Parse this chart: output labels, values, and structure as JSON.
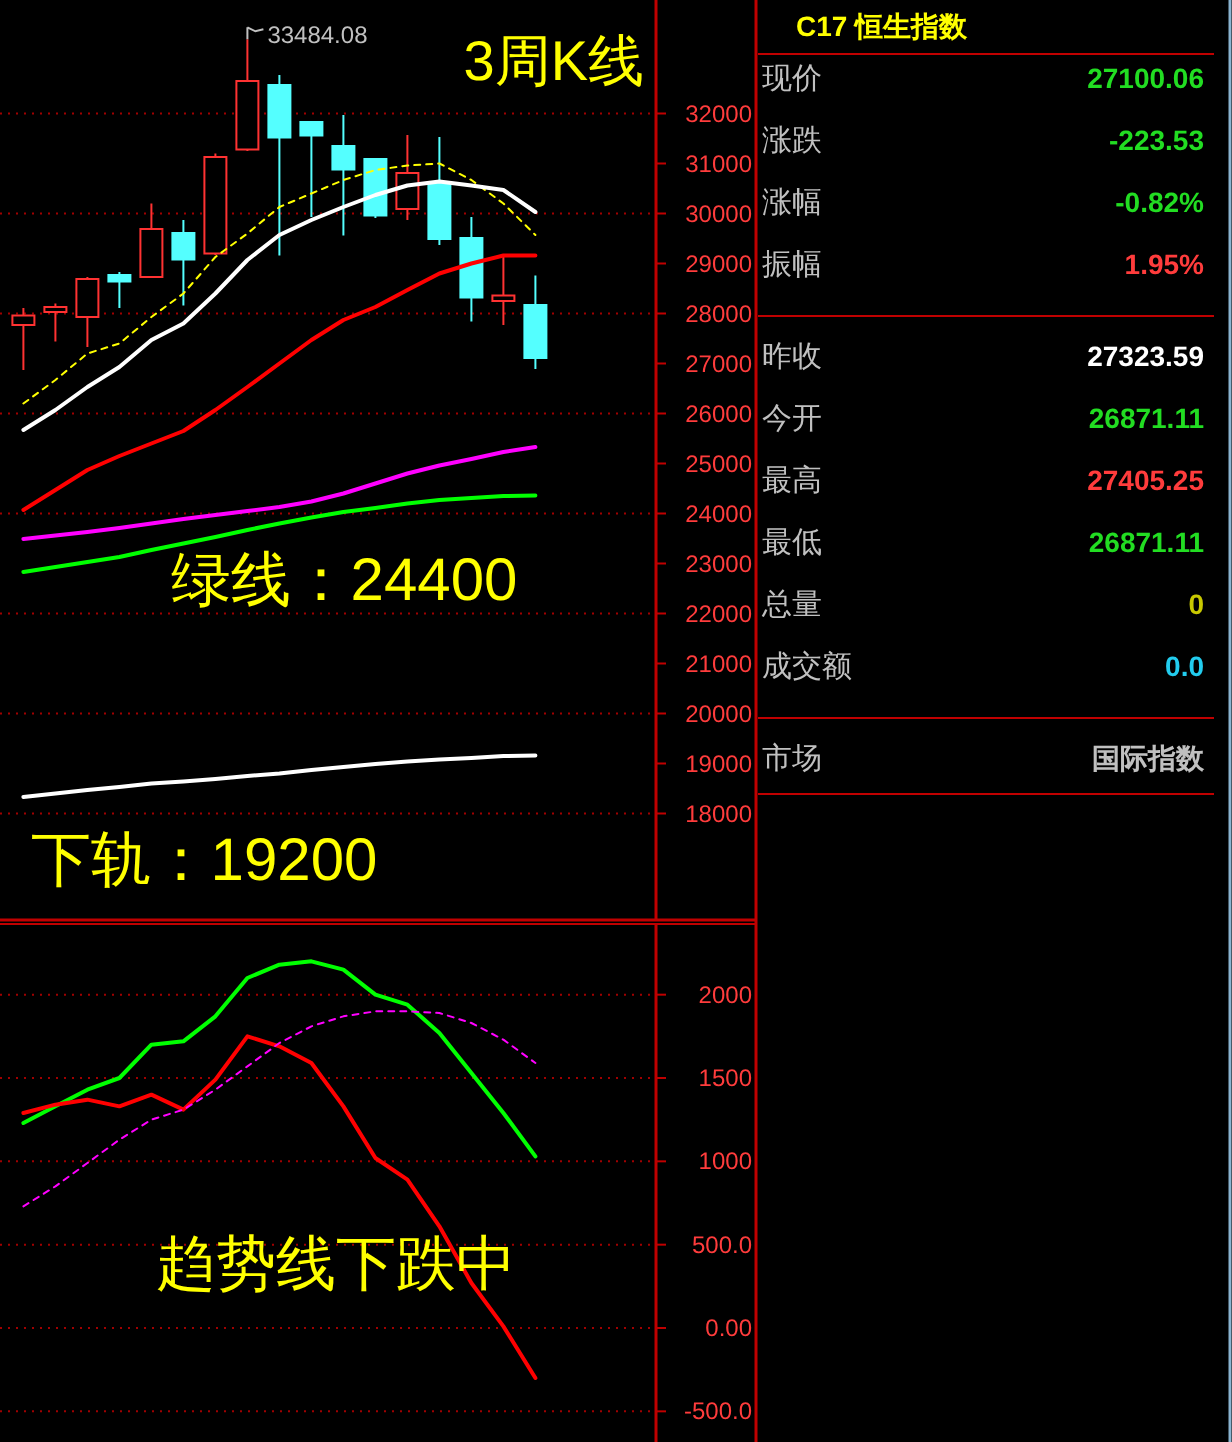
{
  "chart_data": [
    {
      "type": "candlestick",
      "title": "3周K线",
      "categories": [
        null,
        null,
        null,
        null,
        null,
        null,
        null,
        null,
        null,
        null,
        null,
        null,
        null,
        null,
        null,
        null,
        null
      ],
      "ohlc": [
        [
          27770,
          28110,
          26870,
          27960
        ],
        [
          28030,
          28200,
          27440,
          28130
        ],
        [
          27930,
          28730,
          27330,
          28690
        ],
        [
          28770,
          28830,
          28110,
          28640
        ],
        [
          28730,
          30200,
          28730,
          29690
        ],
        [
          29610,
          29870,
          28160,
          29080
        ],
        [
          29200,
          31200,
          29170,
          31130
        ],
        [
          31280,
          33484.08,
          31250,
          32650
        ],
        [
          32570,
          32770,
          29160,
          31520
        ],
        [
          31830,
          31830,
          29930,
          31560
        ],
        [
          31350,
          31970,
          29560,
          30880
        ],
        [
          31090,
          31090,
          29910,
          29960
        ],
        [
          30090,
          31570,
          29870,
          30810
        ],
        [
          30610,
          31530,
          29370,
          29490
        ],
        [
          29510,
          29930,
          27840,
          28320
        ],
        [
          28250,
          29130,
          27770,
          28360
        ],
        [
          28170,
          28760,
          26890,
          27110
        ]
      ],
      "colors": [
        "#ff3232",
        "#ff3232",
        "#ff3232",
        "#54ffff",
        "#ff3232",
        "#54ffff",
        "#ff3232",
        "#ff3232",
        "#54ffff",
        "#54ffff",
        "#54ffff",
        "#54ffff",
        "#ff3232",
        "#54ffff",
        "#54ffff",
        "#ff3232",
        "#54ffff"
      ],
      "series": [
        {
          "type": "line",
          "color": "#ffff00",
          "line_style": "dashed",
          "values": [
            26200,
            26670,
            27200,
            27400,
            27930,
            28400,
            29130,
            29600,
            30130,
            30400,
            30670,
            30870,
            30960,
            31000,
            30670,
            30200,
            29570
          ]
        },
        {
          "type": "line",
          "color": "#ffffff",
          "values": [
            25670,
            26070,
            26530,
            26930,
            27470,
            27800,
            28400,
            29070,
            29570,
            29870,
            30130,
            30370,
            30560,
            30640,
            30560,
            30470,
            30030
          ]
        },
        {
          "type": "line",
          "color": "#ff0000",
          "values": [
            24070,
            24470,
            24870,
            25150,
            25400,
            25650,
            26070,
            26530,
            27000,
            27470,
            27870,
            28130,
            28470,
            28800,
            29000,
            29160,
            29160
          ]
        },
        {
          "type": "line",
          "color": "#ff00ff",
          "values": [
            23490,
            23560,
            23630,
            23710,
            23800,
            23890,
            23970,
            24050,
            24130,
            24240,
            24400,
            24600,
            24800,
            24960,
            25090,
            25230,
            25330
          ]
        },
        {
          "type": "line",
          "color": "#00ff00",
          "values": [
            22830,
            22930,
            23030,
            23130,
            23270,
            23400,
            23530,
            23670,
            23800,
            23920,
            24030,
            24110,
            24200,
            24270,
            24310,
            24350,
            24360
          ]
        },
        {
          "type": "line",
          "color": "#ffffff",
          "values": [
            18330,
            18400,
            18470,
            18530,
            18600,
            18640,
            18690,
            18750,
            18800,
            18870,
            18930,
            18990,
            19040,
            19080,
            19110,
            19150,
            19160
          ]
        }
      ],
      "ylim": [
        15870,
        34270
      ],
      "yticks": [
        18000,
        19000,
        20000,
        21000,
        22000,
        23000,
        24000,
        25000,
        26000,
        27000,
        28000,
        29000,
        30000,
        31000,
        32000
      ],
      "ref_lines": [
        {
          "axis": "y",
          "value": 18000,
          "color": "#a00000",
          "line_style": "dotted"
        },
        {
          "axis": "y",
          "value": 20000,
          "color": "#a00000",
          "line_style": "dotted"
        },
        {
          "axis": "y",
          "value": 22000,
          "color": "#a00000",
          "line_style": "dotted"
        },
        {
          "axis": "y",
          "value": 24000,
          "color": "#a00000",
          "line_style": "dotted"
        },
        {
          "axis": "y",
          "value": 26000,
          "color": "#a00000",
          "line_style": "dotted"
        },
        {
          "axis": "y",
          "value": 28000,
          "color": "#a00000",
          "line_style": "dotted"
        },
        {
          "axis": "y",
          "value": 30000,
          "color": "#a00000",
          "line_style": "dotted"
        },
        {
          "axis": "y",
          "value": 32000,
          "color": "#a00000",
          "line_style": "dotted"
        }
      ],
      "annotations": [
        "33484.08",
        "绿线：24400",
        "下轨：19200"
      ],
      "tick_labels": "y"
    },
    {
      "type": "line",
      "categories": [
        null,
        null,
        null,
        null,
        null,
        null,
        null,
        null,
        null,
        null,
        null,
        null,
        null,
        null,
        null,
        null,
        null
      ],
      "series": [
        {
          "color": "#00ff00",
          "values": [
            1230,
            1330,
            1430,
            1500,
            1700,
            1720,
            1870,
            2100,
            2180,
            2200,
            2150,
            2000,
            1940,
            1770,
            1530,
            1290,
            1030
          ]
        },
        {
          "color": "#ff0000",
          "values": [
            1290,
            1340,
            1370,
            1330,
            1400,
            1310,
            1490,
            1750,
            1690,
            1590,
            1330,
            1020,
            890,
            610,
            270,
            10,
            -300
          ]
        },
        {
          "color": "#ff00ff",
          "line_style": "dashed",
          "values": [
            730,
            850,
            990,
            1130,
            1250,
            1310,
            1430,
            1570,
            1710,
            1810,
            1870,
            1900,
            1900,
            1890,
            1830,
            1730,
            1590
          ]
        }
      ],
      "ylim": [
        -684,
        2424
      ],
      "yticks": [
        {
          "value": -500,
          "label": "-500.0"
        },
        {
          "value": 0,
          "label": "0.00"
        },
        {
          "value": 500,
          "label": "500.0"
        },
        1000,
        1500,
        2000
      ],
      "grid": "y",
      "annotations": [
        "趋势线下跌中"
      ],
      "tick_labels": "y"
    },
    {
      "type": "other",
      "title": "C17 恒生指数",
      "categories": [
        "现价",
        "涨跌",
        "涨幅",
        "振幅",
        "昨收",
        "今开",
        "最高",
        "最低",
        "总量",
        "成交额",
        "市场"
      ],
      "value_labels": [
        "27100.06",
        "-223.53",
        "-0.82%",
        "1.95%",
        "27323.59",
        "26871.11",
        "27405.25",
        "26871.11",
        "0",
        "0.0",
        "国际指数"
      ],
      "colors": [
        "#22dd22",
        "#22dd22",
        "#22dd22",
        "#ff3c3c",
        "#ffffff",
        "#22dd22",
        "#ff3c3c",
        "#22dd22",
        "#c8c800",
        "#22ccee",
        "#c0c0c0"
      ]
    }
  ]
}
